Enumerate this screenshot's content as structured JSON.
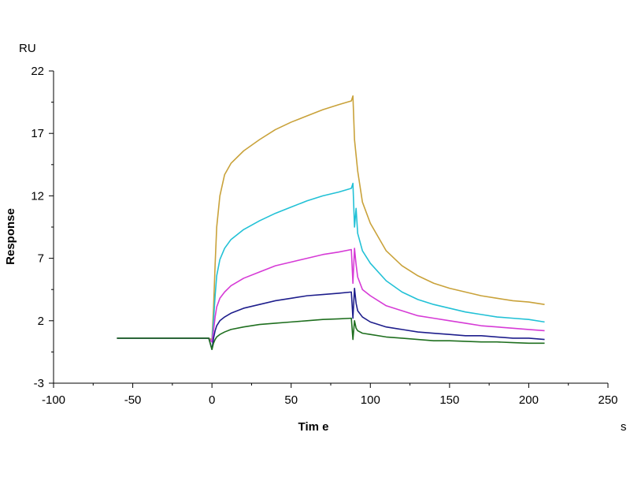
{
  "chart_data": {
    "type": "line",
    "title": "",
    "xlabel": "Tim e",
    "ylabel": "Response",
    "x_unit": "s",
    "y_unit": "RU",
    "xlim": [
      -100,
      250
    ],
    "ylim": [
      -3,
      22
    ],
    "x_ticks": [
      -100,
      -50,
      0,
      50,
      100,
      150,
      200,
      250
    ],
    "y_ticks": [
      -3,
      2,
      7,
      12,
      17,
      22
    ],
    "x_tick_labels": [
      "-100",
      "-50",
      "0",
      "50",
      "100",
      "150",
      "200",
      "250"
    ],
    "y_tick_labels": [
      "-3",
      "2",
      "7",
      "12",
      "17",
      "22"
    ],
    "grid": false,
    "legend": "none",
    "series": [
      {
        "color": "#C9A23A",
        "x": [
          -60,
          -40,
          -20,
          -2,
          0,
          1,
          2,
          3,
          5,
          8,
          12,
          20,
          30,
          40,
          50,
          60,
          70,
          80,
          88,
          89,
          90,
          92,
          95,
          100,
          110,
          120,
          130,
          140,
          150,
          160,
          170,
          180,
          190,
          200,
          210
        ],
        "y": [
          0.6,
          0.6,
          0.6,
          0.6,
          0.5,
          3.0,
          6.5,
          9.5,
          12.0,
          13.7,
          14.6,
          15.6,
          16.5,
          17.3,
          17.9,
          18.4,
          18.9,
          19.3,
          19.6,
          20.0,
          16.5,
          14.0,
          11.5,
          9.8,
          7.6,
          6.4,
          5.6,
          5.0,
          4.6,
          4.3,
          4.0,
          3.8,
          3.6,
          3.5,
          3.3
        ]
      },
      {
        "color": "#22C1D6",
        "x": [
          -60,
          -40,
          -20,
          -2,
          0,
          1,
          2,
          3,
          5,
          8,
          12,
          20,
          30,
          40,
          50,
          60,
          70,
          80,
          88,
          89,
          90,
          91,
          92,
          95,
          100,
          110,
          120,
          130,
          140,
          150,
          160,
          170,
          180,
          190,
          200,
          210
        ],
        "y": [
          0.6,
          0.6,
          0.6,
          0.6,
          0.3,
          2.0,
          4.0,
          5.6,
          6.9,
          7.8,
          8.5,
          9.3,
          10.0,
          10.6,
          11.1,
          11.6,
          12.0,
          12.3,
          12.6,
          13.0,
          9.5,
          11.0,
          9.0,
          7.6,
          6.6,
          5.2,
          4.3,
          3.7,
          3.3,
          3.0,
          2.7,
          2.5,
          2.3,
          2.2,
          2.1,
          1.9
        ]
      },
      {
        "color": "#D63BD6",
        "x": [
          -60,
          -40,
          -20,
          -2,
          0,
          1,
          2,
          3,
          5,
          8,
          12,
          20,
          30,
          40,
          50,
          60,
          70,
          80,
          88,
          89,
          90,
          91,
          92,
          95,
          100,
          110,
          120,
          130,
          140,
          150,
          160,
          170,
          180,
          190,
          200,
          210
        ],
        "y": [
          0.6,
          0.6,
          0.6,
          0.6,
          0.3,
          1.2,
          2.3,
          3.1,
          3.8,
          4.3,
          4.8,
          5.4,
          5.9,
          6.4,
          6.7,
          7.0,
          7.3,
          7.5,
          7.7,
          5.0,
          7.8,
          6.5,
          5.5,
          4.5,
          4.0,
          3.2,
          2.8,
          2.4,
          2.2,
          2.0,
          1.8,
          1.6,
          1.5,
          1.4,
          1.3,
          1.2
        ]
      },
      {
        "color": "#1E1E8C",
        "x": [
          -60,
          -40,
          -20,
          -2,
          0,
          1,
          2,
          3,
          5,
          8,
          12,
          20,
          30,
          40,
          50,
          60,
          70,
          80,
          88,
          89,
          90,
          91,
          92,
          95,
          100,
          110,
          120,
          130,
          140,
          150,
          160,
          170,
          180,
          190,
          200,
          210
        ],
        "y": [
          0.6,
          0.6,
          0.6,
          0.6,
          -0.3,
          0.6,
          1.2,
          1.6,
          2.0,
          2.3,
          2.6,
          3.0,
          3.3,
          3.6,
          3.8,
          4.0,
          4.1,
          4.2,
          4.3,
          2.2,
          4.6,
          3.4,
          2.8,
          2.3,
          1.9,
          1.5,
          1.3,
          1.1,
          1.0,
          0.9,
          0.8,
          0.8,
          0.7,
          0.6,
          0.6,
          0.5
        ]
      },
      {
        "color": "#1F6F1F",
        "x": [
          -60,
          -40,
          -20,
          -2,
          0,
          1,
          2,
          3,
          5,
          8,
          12,
          20,
          30,
          40,
          50,
          60,
          70,
          80,
          88,
          89,
          90,
          91,
          92,
          95,
          100,
          110,
          120,
          130,
          140,
          150,
          160,
          170,
          180,
          190,
          200,
          210
        ],
        "y": [
          0.6,
          0.6,
          0.6,
          0.6,
          -0.3,
          0.2,
          0.5,
          0.7,
          0.9,
          1.1,
          1.3,
          1.5,
          1.7,
          1.8,
          1.9,
          2.0,
          2.1,
          2.15,
          2.2,
          0.5,
          2.0,
          1.4,
          1.2,
          1.0,
          0.9,
          0.7,
          0.6,
          0.5,
          0.4,
          0.4,
          0.35,
          0.3,
          0.3,
          0.25,
          0.2,
          0.2
        ]
      }
    ]
  }
}
